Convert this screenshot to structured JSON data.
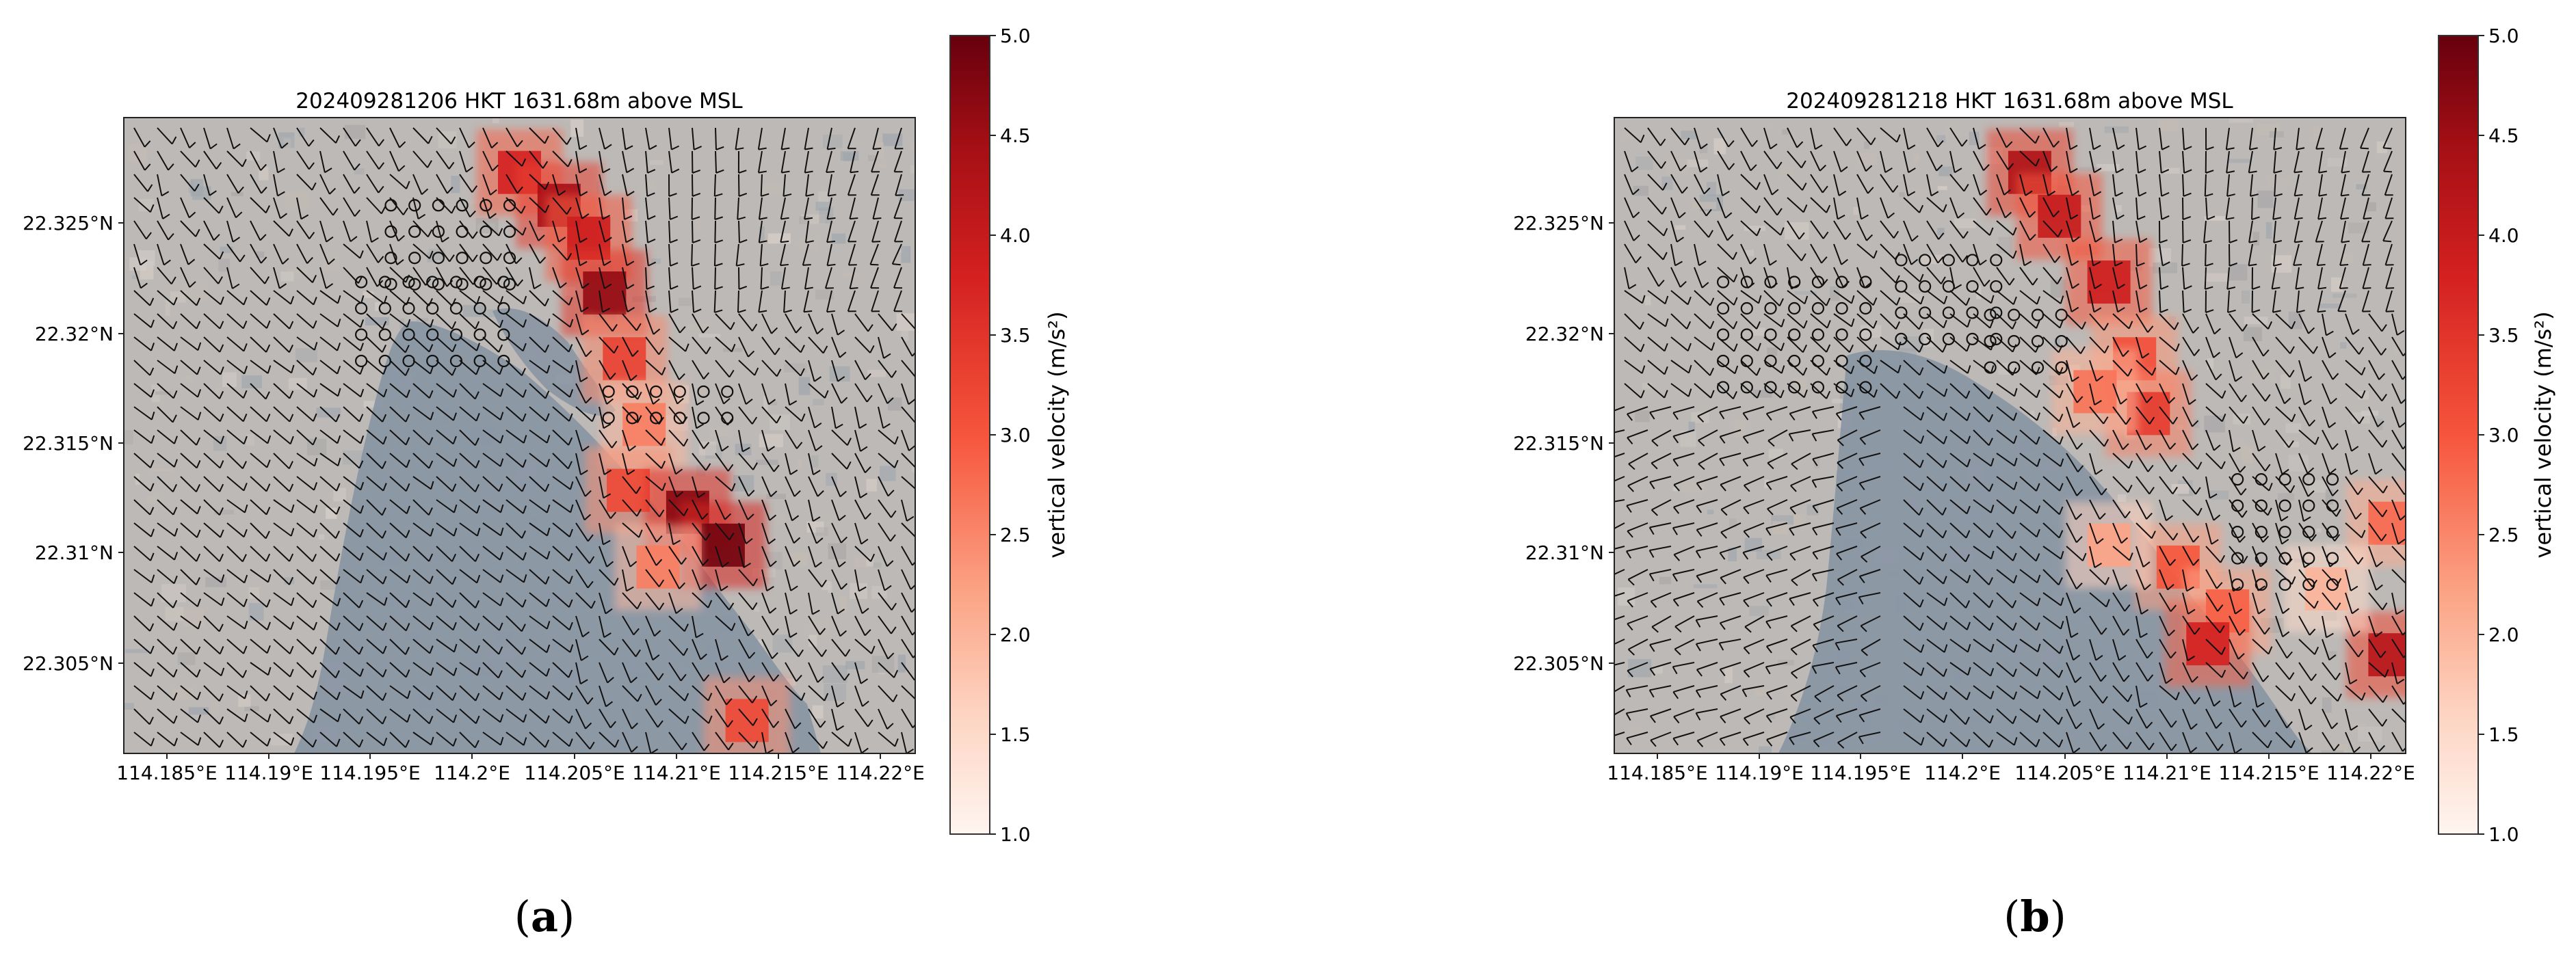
{
  "figure": {
    "panels": [
      {
        "caption_letter": "a",
        "caption_open": "(",
        "caption_close": ")"
      },
      {
        "caption_letter": "b",
        "caption_open": "(",
        "caption_close": ")"
      }
    ]
  },
  "colors": {
    "land": "#b9b6b3",
    "sea": "#8a96a4",
    "barb": "#111111",
    "cmap_low": "#fff5f0",
    "cmap_mid": "#ef3b2c",
    "cmap_high": "#67000d"
  },
  "chart_data": [
    {
      "type": "heatmap",
      "title": "202409281206 HKT 1631.68m above MSL",
      "x_tick_labels": [
        "114.185°E",
        "114.19°E",
        "114.195°E",
        "114.2°E",
        "114.205°E",
        "114.21°E",
        "114.215°E",
        "114.22°E"
      ],
      "x_ticks": [
        114.185,
        114.19,
        114.195,
        114.2,
        114.205,
        114.21,
        114.215,
        114.22
      ],
      "y_tick_labels": [
        "22.325°N",
        "22.32°N",
        "22.315°N",
        "22.31°N",
        "22.305°N"
      ],
      "y_ticks": [
        22.325,
        22.32,
        22.315,
        22.31,
        22.305
      ],
      "xlim": [
        114.1825,
        114.2225
      ],
      "ylim": [
        22.301,
        22.33
      ],
      "colorbar": {
        "label": "vertical velocity (m/s²)",
        "ticks": [
          "1.0",
          "1.5",
          "2.0",
          "2.5",
          "3.0",
          "3.5",
          "4.0",
          "4.5",
          "5.0"
        ],
        "range": [
          1.0,
          5.0
        ]
      },
      "updraft_cells": [
        {
          "lon": 114.2025,
          "lat": 22.3275,
          "value": 3.8
        },
        {
          "lon": 114.2045,
          "lat": 22.326,
          "value": 4.4
        },
        {
          "lon": 114.206,
          "lat": 22.3245,
          "value": 3.9
        },
        {
          "lon": 114.2068,
          "lat": 22.322,
          "value": 4.6
        },
        {
          "lon": 114.2078,
          "lat": 22.319,
          "value": 3.3
        },
        {
          "lon": 114.2088,
          "lat": 22.316,
          "value": 2.6
        },
        {
          "lon": 114.208,
          "lat": 22.313,
          "value": 3.2
        },
        {
          "lon": 114.211,
          "lat": 22.312,
          "value": 4.7
        },
        {
          "lon": 114.2128,
          "lat": 22.3105,
          "value": 4.9
        },
        {
          "lon": 114.2095,
          "lat": 22.3095,
          "value": 2.6
        },
        {
          "lon": 114.214,
          "lat": 22.3025,
          "value": 3.2
        }
      ]
    },
    {
      "type": "heatmap",
      "title": "202409281218 HKT 1631.68m above MSL",
      "x_tick_labels": [
        "114.185°E",
        "114.19°E",
        "114.195°E",
        "114.2°E",
        "114.205°E",
        "114.21°E",
        "114.215°E",
        "114.22°E"
      ],
      "x_ticks": [
        114.185,
        114.19,
        114.195,
        114.2,
        114.205,
        114.21,
        114.215,
        114.22
      ],
      "y_tick_labels": [
        "22.325°N",
        "22.32°N",
        "22.315°N",
        "22.31°N",
        "22.305°N"
      ],
      "y_ticks": [
        22.325,
        22.32,
        22.315,
        22.31,
        22.305
      ],
      "xlim": [
        114.1825,
        114.2225
      ],
      "ylim": [
        22.301,
        22.33
      ],
      "colorbar": {
        "label": "vertical velocity (m/s²)",
        "ticks": [
          "1.0",
          "1.5",
          "2.0",
          "2.5",
          "3.0",
          "3.5",
          "4.0",
          "4.5",
          "5.0"
        ],
        "range": [
          1.0,
          5.0
        ]
      },
      "updraft_cells": [
        {
          "lon": 114.2035,
          "lat": 22.3275,
          "value": 4.3
        },
        {
          "lon": 114.205,
          "lat": 22.3255,
          "value": 4.0
        },
        {
          "lon": 114.2075,
          "lat": 22.3225,
          "value": 3.9
        },
        {
          "lon": 114.2088,
          "lat": 22.319,
          "value": 3.1
        },
        {
          "lon": 114.2095,
          "lat": 22.3165,
          "value": 3.4
        },
        {
          "lon": 114.2068,
          "lat": 22.3175,
          "value": 2.7
        },
        {
          "lon": 114.211,
          "lat": 22.3095,
          "value": 3.0
        },
        {
          "lon": 114.2135,
          "lat": 22.3075,
          "value": 2.9
        },
        {
          "lon": 114.2125,
          "lat": 22.306,
          "value": 3.8
        },
        {
          "lon": 114.2075,
          "lat": 22.3105,
          "value": 2.2
        },
        {
          "lon": 114.2217,
          "lat": 22.3115,
          "value": 2.8
        },
        {
          "lon": 114.2217,
          "lat": 22.3055,
          "value": 4.2
        },
        {
          "lon": 114.2185,
          "lat": 22.3085,
          "value": 2.0
        }
      ]
    }
  ]
}
